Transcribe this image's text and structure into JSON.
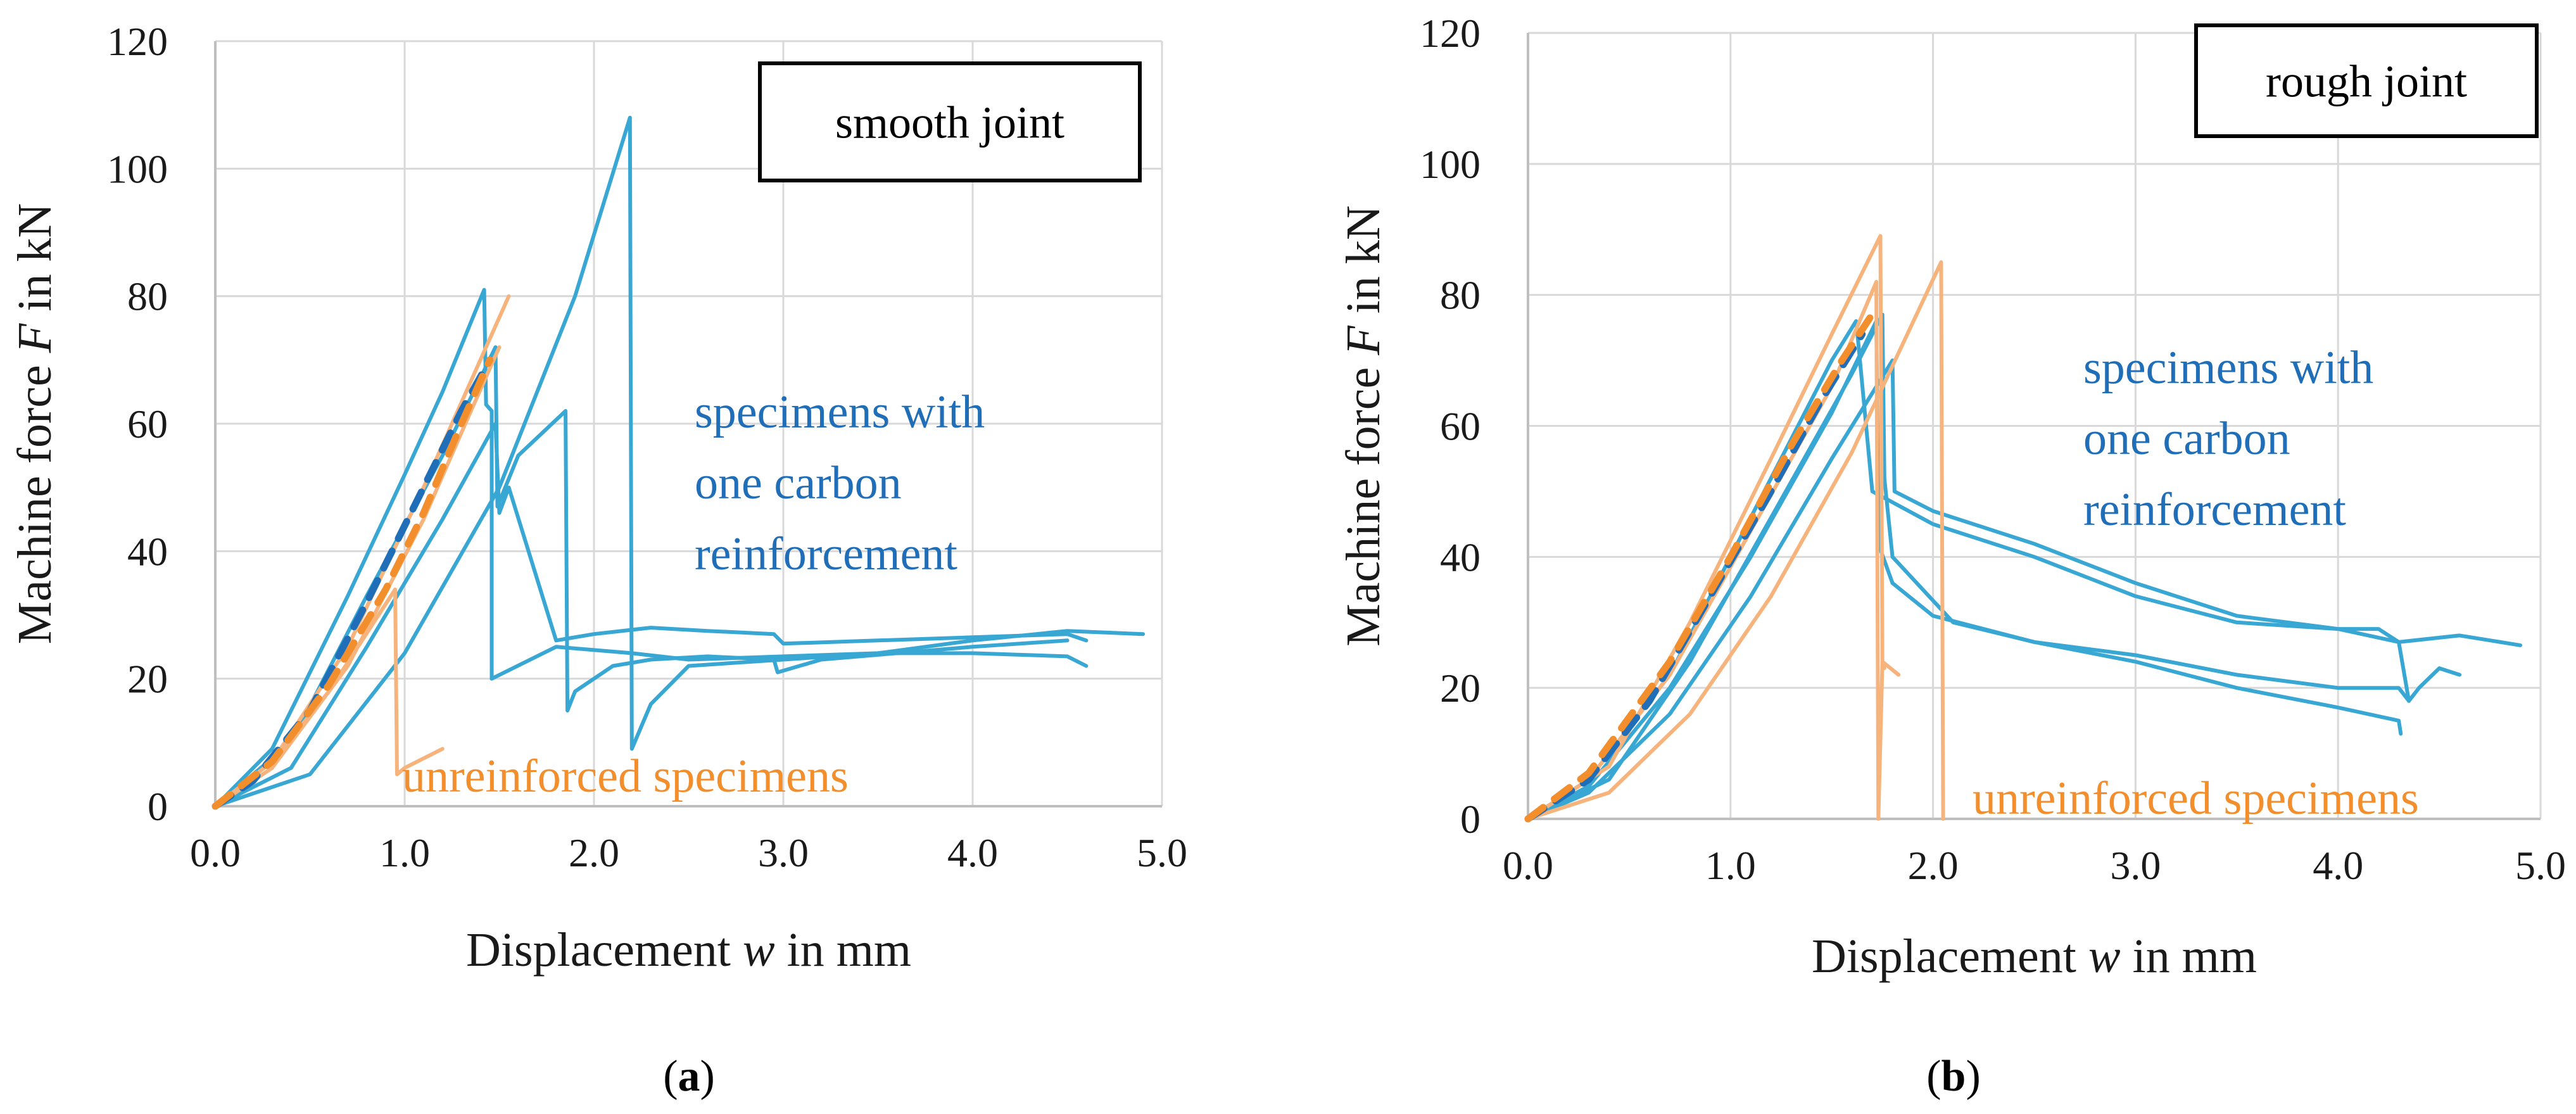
{
  "colors": {
    "reinforced": "#39a7d4",
    "reinforced_mean": "#1f6eb7",
    "unreinforced": "#f7b37c",
    "unreinforced_mean": "#f28e2b",
    "reinforced_label": "#1f6eb7",
    "unreinforced_label": "#f28e2b"
  },
  "chart_data": [
    {
      "type": "line",
      "caption": "a",
      "title": "smooth joint",
      "xlabel_parts": [
        "Displacement ",
        "w",
        " in mm"
      ],
      "ylabel_parts": [
        "Machine force ",
        "F",
        " in kN"
      ],
      "xlim": [
        0,
        5
      ],
      "ylim": [
        0,
        120
      ],
      "xticks": [
        "0.0",
        "1.0",
        "2.0",
        "3.0",
        "4.0",
        "5.0"
      ],
      "yticks": [
        "0",
        "20",
        "40",
        "60",
        "80",
        "100",
        "120"
      ],
      "reinforced_label_lines": [
        "specimens with",
        "one carbon",
        "reinforcement"
      ],
      "unreinforced_label": "unreinforced specimens",
      "series": [
        {
          "name": "reinforced specimen 1",
          "group": "reinforced",
          "x": [
            0,
            0.3,
            0.7,
            1.0,
            1.2,
            1.42,
            1.43,
            1.46,
            1.46,
            1.8,
            2.2,
            2.5,
            3.0,
            3.5,
            4.0,
            4.5,
            4.6
          ],
          "y": [
            0,
            9,
            33,
            52,
            65,
            81,
            63,
            62,
            20,
            25,
            24,
            23,
            23.5,
            24,
            24,
            23.5,
            22
          ]
        },
        {
          "name": "reinforced specimen 2",
          "group": "reinforced",
          "x": [
            0,
            0.5,
            1.0,
            1.5,
            1.9,
            2.19,
            2.2,
            2.3,
            2.5,
            3.0,
            3.5,
            4.0,
            4.5,
            4.9
          ],
          "y": [
            0,
            5,
            24,
            50,
            80,
            108,
            9,
            16,
            22,
            23,
            24,
            26,
            27.5,
            27
          ]
        },
        {
          "name": "reinforced specimen 3",
          "group": "reinforced",
          "x": [
            0,
            0.4,
            0.8,
            1.2,
            1.48,
            1.49,
            1.6,
            1.85,
            1.86,
            1.9,
            2.1,
            2.3,
            2.6,
            2.95,
            2.97,
            3.2,
            3.6,
            4.0,
            4.5
          ],
          "y": [
            0,
            10,
            33,
            55,
            72,
            47,
            55,
            62,
            15,
            18,
            22,
            23,
            23.5,
            23,
            21,
            23,
            24,
            25,
            26
          ]
        },
        {
          "name": "reinforced specimen 4",
          "group": "reinforced",
          "x": [
            0,
            0.4,
            0.8,
            1.2,
            1.48,
            1.5,
            1.55,
            1.8,
            2.0,
            2.3,
            2.6,
            2.95,
            3.0,
            3.5,
            4.0,
            4.5,
            4.6
          ],
          "y": [
            0,
            6,
            25,
            45,
            60,
            46,
            50,
            26,
            27,
            28,
            27.5,
            27,
            25.5,
            26,
            26.5,
            27,
            26
          ]
        },
        {
          "name": "reinforced mean",
          "group": "reinforced_mean",
          "dashed": true,
          "x": [
            0,
            0.2,
            0.5,
            0.8,
            1.1,
            1.3,
            1.45
          ],
          "y": [
            0,
            4,
            15,
            32,
            50,
            62,
            70
          ]
        },
        {
          "name": "unreinforced specimen 1",
          "group": "unreinforced",
          "x": [
            0,
            0.3,
            0.6,
            0.95,
            0.96,
            1.0,
            1.2
          ],
          "y": [
            0,
            7,
            18,
            34,
            5,
            6,
            9
          ]
        },
        {
          "name": "unreinforced specimen 2",
          "group": "unreinforced",
          "x": [
            0,
            0.3,
            0.7,
            1.1,
            1.4,
            1.55
          ],
          "y": [
            0,
            7,
            25,
            50,
            70,
            80
          ]
        },
        {
          "name": "unreinforced specimen 3",
          "group": "unreinforced",
          "x": [
            0,
            0.3,
            0.7,
            1.1,
            1.35,
            1.5
          ],
          "y": [
            0,
            6,
            22,
            45,
            62,
            72
          ]
        },
        {
          "name": "unreinforced mean",
          "group": "unreinforced_mean",
          "dashed": true,
          "x": [
            0,
            0.3,
            0.6,
            0.9,
            1.1,
            1.3,
            1.45
          ],
          "y": [
            0,
            7,
            19,
            34,
            46,
            60,
            70
          ]
        }
      ]
    },
    {
      "type": "line",
      "caption": "b",
      "title": "rough joint",
      "xlabel_parts": [
        "Displacement ",
        "w",
        " in mm"
      ],
      "ylabel_parts": [
        "Machine force ",
        "F",
        " in kN"
      ],
      "xlim": [
        0,
        5
      ],
      "ylim": [
        0,
        120
      ],
      "xticks": [
        "0.0",
        "1.0",
        "2.0",
        "3.0",
        "4.0",
        "5.0"
      ],
      "yticks": [
        "0",
        "20",
        "40",
        "60",
        "80",
        "100",
        "120"
      ],
      "reinforced_label_lines": [
        "specimens with",
        "one carbon",
        "reinforcement"
      ],
      "unreinforced_label": "unreinforced specimens",
      "series": [
        {
          "name": "reinforced specimen 1",
          "group": "reinforced",
          "x": [
            0,
            0.3,
            0.7,
            1.0,
            1.3,
            1.5,
            1.62,
            1.63,
            1.7,
            2.0,
            2.5,
            3.0,
            3.5,
            4.0,
            4.2,
            4.3,
            4.35,
            4.4,
            4.5,
            4.6
          ],
          "y": [
            0,
            6,
            22,
            40,
            58,
            70,
            76,
            73,
            50,
            45,
            40,
            34,
            30,
            29,
            29,
            27,
            18,
            20,
            23,
            22
          ]
        },
        {
          "name": "reinforced specimen 2",
          "group": "reinforced",
          "x": [
            0,
            0.4,
            0.8,
            1.2,
            1.6,
            1.75,
            1.76,
            1.8,
            2.1,
            2.5,
            3.0,
            3.5,
            4.0,
            4.3,
            4.35
          ],
          "y": [
            0,
            6,
            24,
            46,
            68,
            77,
            52,
            40,
            30,
            27,
            25,
            22,
            20,
            20,
            18
          ]
        },
        {
          "name": "reinforced specimen 3",
          "group": "reinforced",
          "x": [
            0,
            0.3,
            0.7,
            1.1,
            1.5,
            1.8,
            1.81,
            2.0,
            2.5,
            3.0,
            3.5,
            4.0,
            4.3,
            4.6,
            4.9
          ],
          "y": [
            0,
            4,
            16,
            34,
            55,
            70,
            50,
            47,
            42,
            36,
            31,
            29,
            27,
            28,
            26.5
          ]
        },
        {
          "name": "reinforced specimen 4",
          "group": "reinforced",
          "x": [
            0,
            0.3,
            0.7,
            1.1,
            1.5,
            1.72,
            1.73,
            1.8,
            2.0,
            2.5,
            3.0,
            3.5,
            4.0,
            4.3,
            4.31
          ],
          "y": [
            0,
            5,
            20,
            40,
            62,
            76,
            42,
            36,
            31,
            27,
            24,
            20,
            17,
            15,
            13
          ]
        },
        {
          "name": "reinforced mean",
          "group": "reinforced_mean",
          "dashed": true,
          "x": [
            0,
            0.3,
            0.6,
            0.9,
            1.2,
            1.45,
            1.65
          ],
          "y": [
            0,
            6,
            18,
            34,
            50,
            64,
            74
          ]
        },
        {
          "name": "unreinforced specimen 1",
          "group": "unreinforced",
          "x": [
            0,
            0.3,
            0.7,
            1.1,
            1.5,
            1.72,
            1.73,
            1.75,
            1.83
          ],
          "y": [
            0,
            6,
            22,
            44,
            66,
            82,
            0,
            24,
            22
          ]
        },
        {
          "name": "unreinforced specimen 2",
          "group": "unreinforced",
          "x": [
            0,
            0.4,
            0.8,
            1.2,
            1.5,
            1.74,
            1.75,
            1.76
          ],
          "y": [
            0,
            8,
            30,
            55,
            74,
            89,
            24,
            23
          ]
        },
        {
          "name": "unreinforced specimen 3",
          "group": "unreinforced",
          "x": [
            0,
            0.4,
            0.8,
            1.2,
            1.6,
            2.04,
            2.05
          ],
          "y": [
            0,
            4,
            16,
            34,
            56,
            85,
            0
          ]
        },
        {
          "name": "unreinforced mean",
          "group": "unreinforced_mean",
          "dashed": true,
          "x": [
            0,
            0.3,
            0.7,
            1.0,
            1.3,
            1.55,
            1.72
          ],
          "y": [
            0,
            7,
            24,
            40,
            57,
            70,
            78
          ]
        }
      ]
    }
  ]
}
